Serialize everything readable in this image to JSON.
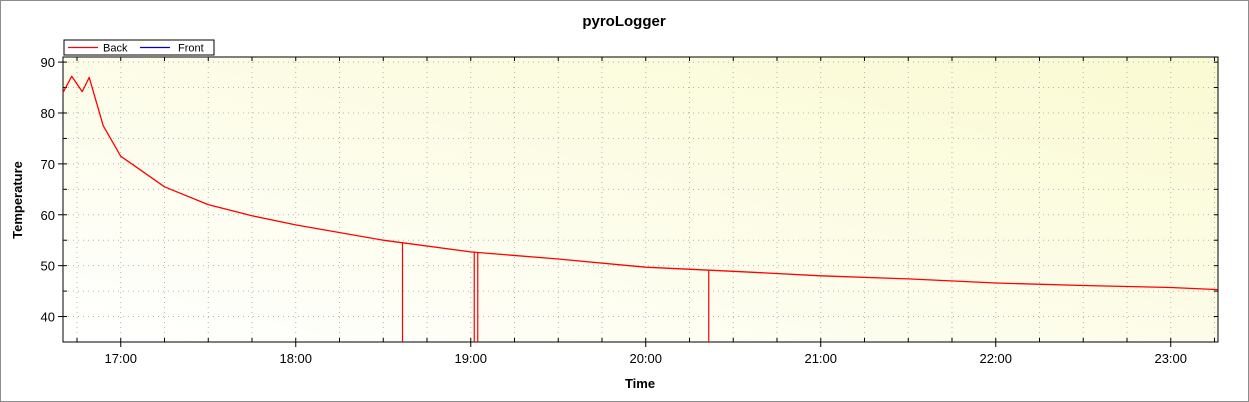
{
  "chart_data": {
    "type": "line",
    "title": "pyroLogger",
    "xlabel": "Time",
    "ylabel": "Temperature",
    "x_tick_labels": [
      "17:00",
      "18:00",
      "19:00",
      "20:00",
      "21:00",
      "22:00",
      "23:00"
    ],
    "x_ticks_hours": [
      17,
      18,
      19,
      20,
      21,
      22,
      23
    ],
    "xlim_hours": [
      16.67,
      23.27
    ],
    "ylim": [
      35,
      91
    ],
    "y_ticks": [
      40,
      50,
      60,
      70,
      80,
      90
    ],
    "grid": true,
    "legend_position": "top-left",
    "background_gradient": [
      "#ffffff",
      "#fafad2"
    ],
    "series": [
      {
        "name": "Back",
        "color": "#ff0000",
        "x_hours": [
          16.67,
          16.72,
          16.78,
          16.82,
          16.9,
          17.0,
          17.25,
          17.5,
          17.75,
          18.0,
          18.5,
          19.0,
          19.5,
          20.0,
          20.5,
          21.0,
          21.5,
          22.0,
          22.5,
          23.0,
          23.27
        ],
        "values": [
          84,
          87.2,
          84.2,
          87,
          77.5,
          71.5,
          65.5,
          62,
          59.8,
          58,
          55,
          52.7,
          51.3,
          49.7,
          48.9,
          48,
          47.4,
          46.6,
          46.1,
          45.7,
          45.3
        ],
        "dropouts_hours": [
          18.61,
          19.02,
          19.04,
          20.36
        ]
      },
      {
        "name": "Front",
        "color": "#0000c8",
        "x_hours": [],
        "values": []
      }
    ]
  }
}
